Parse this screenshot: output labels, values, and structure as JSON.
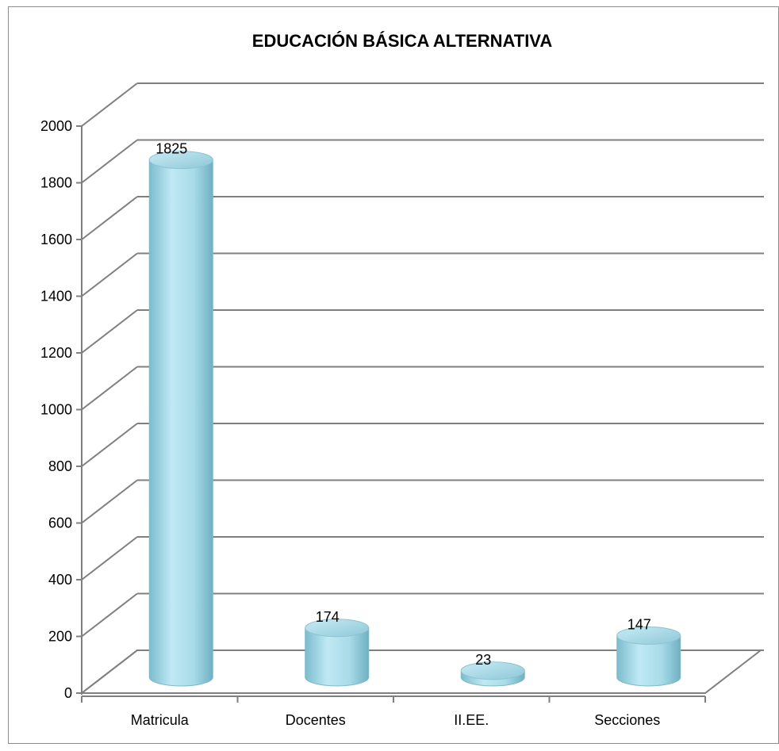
{
  "chart_data": {
    "type": "bar",
    "title": "EDUCACIÓN BÁSICA ALTERNATIVA",
    "xlabel": "",
    "ylabel": "",
    "categories": [
      "Matricula",
      "Docentes",
      "II.EE.",
      "Secciones"
    ],
    "values": [
      1825,
      174,
      23,
      147
    ],
    "data_labels": [
      "1825",
      "174",
      "23",
      "147"
    ],
    "y_ticks": [
      "0",
      "200",
      "400",
      "600",
      "800",
      "1000",
      "1200",
      "1400",
      "1600",
      "1800",
      "2000"
    ],
    "ylim": [
      0,
      2000
    ],
    "grid": true,
    "legend": "none",
    "style": "3d-cylinder",
    "colors": {
      "bar": "#a9dbe8",
      "bar_dark": "#6fb4c6",
      "bar_top": "#d4f1f8",
      "grid": "#7f7f7f"
    }
  }
}
